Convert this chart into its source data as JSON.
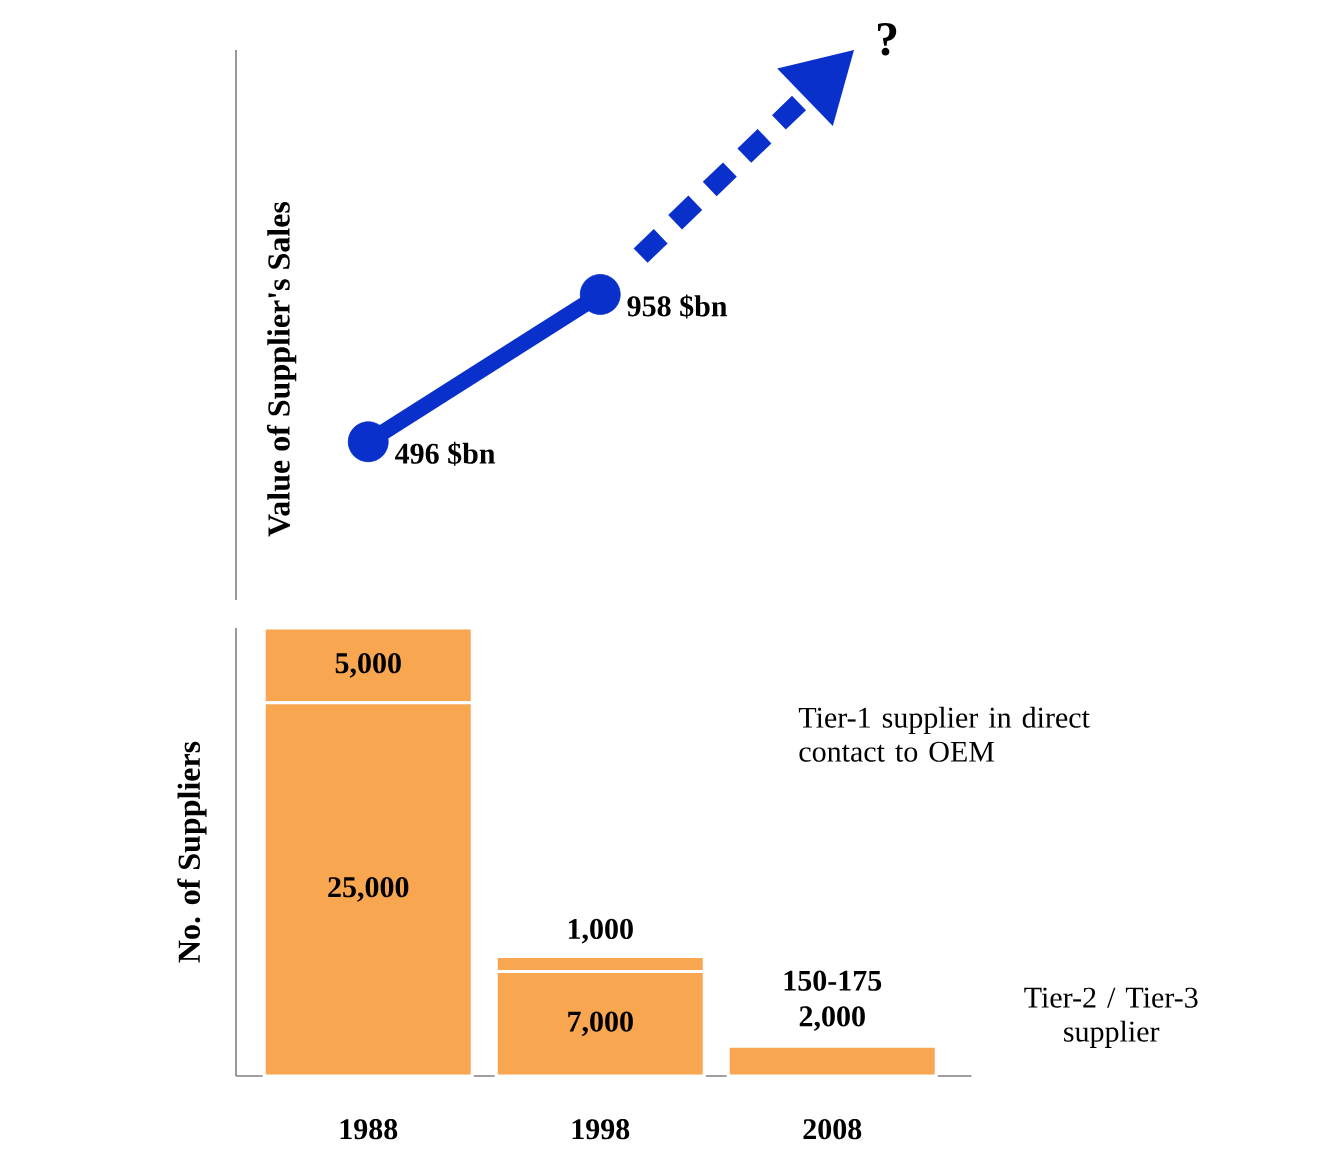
{
  "chart_data": [
    {
      "type": "line",
      "ylabel": "Value of Supplier's Sales",
      "categories": [
        "1988",
        "1998",
        "2008"
      ],
      "tick_labels": false,
      "color": "#0a30cc",
      "marker": "circle",
      "series": [
        {
          "values": [
            496,
            958,
            null
          ],
          "value_labels": [
            "496 $bn",
            "958 $bn",
            null
          ]
        }
      ],
      "annotations": [
        "?"
      ]
    },
    {
      "type": "bar",
      "stacked": true,
      "ylabel": "No. of Suppliers",
      "categories": [
        "1988",
        "1998",
        "2008"
      ],
      "tick_labels": "x",
      "series": [
        {
          "color": "#f9a650",
          "values": [
            25000,
            7000,
            2000
          ],
          "value_labels": [
            "25,000",
            "7,000",
            "2,000"
          ]
        },
        {
          "color": "#f9a650",
          "values": [
            5000,
            1000,
            150
          ],
          "value_labels": [
            "5,000",
            "1,000",
            "150-175"
          ]
        }
      ],
      "annotations": [
        "Tier-1 supplier in direct contact to OEM",
        "Tier-2 / Tier-3 supplier"
      ]
    }
  ]
}
